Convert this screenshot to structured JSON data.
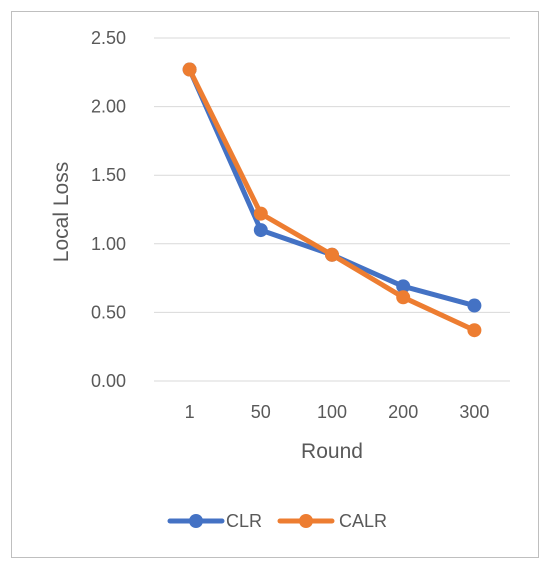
{
  "chart_data": {
    "type": "line",
    "title": "",
    "xlabel": "Round",
    "ylabel": "Local Loss",
    "categories": [
      "1",
      "50",
      "100",
      "200",
      "300"
    ],
    "ylim": [
      0,
      2.5
    ],
    "yticks": [
      "0.00",
      "0.50",
      "1.00",
      "1.50",
      "2.00",
      "2.50"
    ],
    "grid": true,
    "legend_position": "bottom",
    "series": [
      {
        "name": "CLR",
        "color": "#4472C4",
        "values": [
          2.27,
          1.1,
          0.92,
          0.69,
          0.55
        ]
      },
      {
        "name": "CALR",
        "color": "#ED7D31",
        "values": [
          2.27,
          1.22,
          0.92,
          0.61,
          0.37
        ]
      }
    ]
  }
}
